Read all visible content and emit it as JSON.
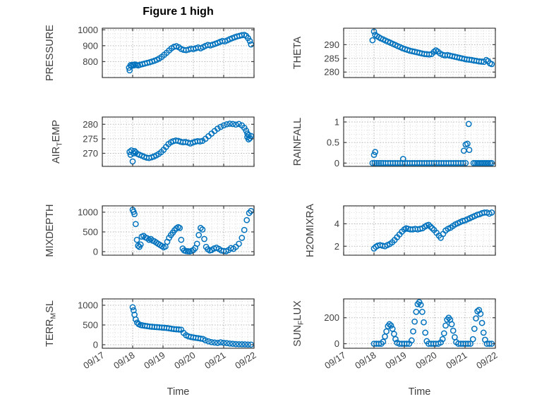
{
  "title": "Figure 1 high",
  "xlabel": "Time",
  "colors": {
    "marker": "#0072BD",
    "axis": "#3b3b3b",
    "tick_label": "#3f3f3f",
    "grid_major": "#b5b5b5",
    "grid_minor": "#d9d9d9",
    "background": "#ffffff"
  },
  "x_axis": {
    "lim": [
      17,
      22
    ],
    "ticks": [
      17,
      18,
      19,
      20,
      21,
      22
    ],
    "tick_labels": [
      "09/17",
      "09/18",
      "09/19",
      "09/20",
      "09/21",
      "09/22"
    ],
    "minor_step": 0.2
  },
  "chart_data": [
    {
      "name": "pressure",
      "type": "scatter",
      "col": 0,
      "row": 0,
      "ylabel": "PRESSURE",
      "ylabel_segments": [
        {
          "t": "PRESSURE",
          "sub": false
        }
      ],
      "ylim": [
        700,
        1010
      ],
      "yticks": [
        800,
        900,
        1000
      ],
      "ytick_labels": [
        "800",
        "900",
        "1000"
      ],
      "y_minor_step": 25,
      "show_x_tick_labels": false,
      "x": [
        17.88,
        17.9,
        17.93,
        17.96,
        18.0,
        18.04,
        18.08,
        18.13,
        18.18,
        18.24,
        18.32,
        18.4,
        18.48,
        18.56,
        18.64,
        18.72,
        18.8,
        18.88,
        18.96,
        19.04,
        19.12,
        19.2,
        19.28,
        19.36,
        19.44,
        19.52,
        19.6,
        19.68,
        19.76,
        19.84,
        19.92,
        20.0,
        20.08,
        20.16,
        20.24,
        20.32,
        20.4,
        20.48,
        20.56,
        20.64,
        20.72,
        20.8,
        20.88,
        20.96,
        21.04,
        21.12,
        21.2,
        21.28,
        21.36,
        21.44,
        21.52,
        21.6,
        21.68,
        21.74,
        21.8,
        21.86,
        21.9
      ],
      "y": [
        762,
        745,
        778,
        772,
        780,
        776,
        782,
        779,
        776,
        780,
        784,
        788,
        792,
        796,
        801,
        806,
        812,
        820,
        830,
        843,
        856,
        870,
        884,
        893,
        897,
        890,
        880,
        874,
        872,
        876,
        881,
        879,
        884,
        889,
        884,
        891,
        899,
        905,
        902,
        907,
        912,
        918,
        924,
        930,
        927,
        934,
        941,
        947,
        953,
        958,
        962,
        966,
        968,
        962,
        948,
        930,
        908
      ]
    },
    {
      "name": "airtemp",
      "type": "scatter",
      "col": 0,
      "row": 1,
      "ylabel": "AIR_TEMP",
      "ylabel_segments": [
        {
          "t": "AIR",
          "sub": false
        },
        {
          "t": "T",
          "sub": true
        },
        {
          "t": "EMP",
          "sub": false
        }
      ],
      "ylim": [
        265.5,
        282.5
      ],
      "yticks": [
        270,
        275,
        280
      ],
      "ytick_labels": [
        "270",
        "275",
        "280"
      ],
      "y_minor_step": 1,
      "show_x_tick_labels": false,
      "x": [
        17.9,
        17.93,
        17.96,
        18.0,
        18.03,
        18.06,
        18.1,
        18.16,
        18.22,
        18.3,
        18.38,
        18.46,
        18.54,
        18.62,
        18.7,
        18.78,
        18.86,
        18.94,
        19.02,
        19.1,
        19.18,
        19.26,
        19.34,
        19.42,
        19.5,
        19.58,
        19.66,
        19.74,
        19.82,
        19.9,
        19.98,
        20.06,
        20.14,
        20.22,
        20.3,
        20.4,
        20.5,
        20.6,
        20.7,
        20.8,
        20.9,
        21.0,
        21.1,
        21.2,
        21.3,
        21.4,
        21.5,
        21.6,
        21.68,
        21.74,
        21.78,
        21.78,
        21.82,
        21.82,
        21.86,
        21.9
      ],
      "y": [
        270.5,
        269.5,
        271.0,
        267.2,
        270.0,
        270.8,
        270.3,
        269.8,
        269.5,
        269.2,
        268.8,
        268.5,
        268.4,
        268.6,
        268.9,
        269.3,
        269.8,
        270.4,
        271.2,
        272.2,
        273.2,
        273.8,
        274.2,
        274.4,
        274.3,
        274.0,
        273.8,
        273.9,
        273.7,
        273.4,
        273.7,
        274.0,
        274.2,
        274.1,
        274.3,
        275.0,
        275.9,
        276.8,
        277.7,
        278.5,
        279.1,
        279.6,
        280.0,
        280.2,
        280.1,
        279.9,
        280.1,
        279.6,
        278.8,
        277.8,
        276.8,
        275.6,
        274.8,
        276.2,
        275.2,
        276.0
      ]
    },
    {
      "name": "mixdepth",
      "type": "scatter",
      "col": 0,
      "row": 2,
      "ylabel": "MIXDEPTH",
      "ylabel_segments": [
        {
          "t": "MIXDEPTH",
          "sub": false
        }
      ],
      "ylim": [
        -90,
        1160
      ],
      "yticks": [
        0,
        500,
        1000
      ],
      "ytick_labels": [
        "0",
        "500",
        "1000"
      ],
      "y_minor_step": 100,
      "show_x_tick_labels": false,
      "x": [
        18.0,
        18.03,
        18.06,
        18.1,
        18.14,
        18.18,
        18.22,
        18.26,
        18.3,
        18.36,
        18.42,
        18.48,
        18.54,
        18.6,
        18.66,
        18.72,
        18.78,
        18.84,
        18.9,
        18.96,
        19.02,
        19.08,
        19.14,
        19.2,
        19.26,
        19.32,
        19.38,
        19.44,
        19.5,
        19.55,
        19.6,
        19.65,
        19.7,
        19.76,
        19.82,
        19.88,
        19.94,
        20.0,
        20.06,
        20.12,
        20.18,
        20.24,
        20.3,
        20.36,
        20.42,
        20.48,
        20.54,
        20.6,
        20.68,
        20.76,
        20.84,
        20.92,
        21.0,
        21.08,
        21.16,
        21.24,
        21.32,
        21.4,
        21.5,
        21.6,
        21.68,
        21.76,
        21.84,
        21.9
      ],
      "y": [
        1060,
        1010,
        950,
        700,
        300,
        150,
        120,
        180,
        380,
        400,
        360,
        340,
        300,
        320,
        280,
        260,
        230,
        200,
        170,
        140,
        110,
        130,
        250,
        350,
        420,
        480,
        540,
        590,
        620,
        600,
        300,
        80,
        30,
        15,
        10,
        5,
        20,
        40,
        90,
        200,
        420,
        600,
        560,
        320,
        120,
        60,
        30,
        40,
        80,
        100,
        70,
        30,
        15,
        10,
        40,
        90,
        70,
        120,
        200,
        350,
        550,
        800,
        980,
        1030
      ]
    },
    {
      "name": "terr_msl",
      "type": "scatter",
      "col": 0,
      "row": 3,
      "ylabel": "TERR_MSL",
      "ylabel_segments": [
        {
          "t": "TERR",
          "sub": false
        },
        {
          "t": "M",
          "sub": true
        },
        {
          "t": "SL",
          "sub": false
        }
      ],
      "ylim": [
        -90,
        1160
      ],
      "yticks": [
        0,
        500,
        1000
      ],
      "ytick_labels": [
        "0",
        "500",
        "1000"
      ],
      "y_minor_step": 100,
      "show_x_tick_labels": true,
      "x": [
        18.0,
        18.03,
        18.06,
        18.1,
        18.15,
        18.2,
        18.26,
        18.32,
        18.4,
        18.48,
        18.56,
        18.64,
        18.72,
        18.8,
        18.88,
        18.96,
        19.04,
        19.12,
        19.2,
        19.28,
        19.36,
        19.44,
        19.52,
        19.6,
        19.68,
        19.76,
        19.84,
        19.92,
        20.0,
        20.08,
        20.16,
        20.24,
        20.32,
        20.4,
        20.5,
        20.6,
        20.7,
        20.8,
        20.9,
        21.0,
        21.1,
        21.2,
        21.3,
        21.4,
        21.5,
        21.6,
        21.7,
        21.8,
        21.9
      ],
      "y": [
        950,
        870,
        760,
        640,
        560,
        520,
        500,
        490,
        480,
        470,
        460,
        455,
        450,
        445,
        440,
        435,
        430,
        425,
        415,
        405,
        395,
        390,
        385,
        380,
        300,
        240,
        210,
        195,
        185,
        175,
        165,
        155,
        145,
        110,
        85,
        65,
        55,
        45,
        60,
        50,
        40,
        30,
        22,
        15,
        12,
        10,
        8,
        5,
        3
      ]
    },
    {
      "name": "theta",
      "type": "scatter",
      "col": 1,
      "row": 0,
      "ylabel": "THETA",
      "ylabel_segments": [
        {
          "t": "THETA",
          "sub": false
        }
      ],
      "ylim": [
        278,
        296
      ],
      "yticks": [
        280,
        285,
        290
      ],
      "ytick_labels": [
        "280",
        "285",
        "290"
      ],
      "y_minor_step": 1,
      "show_x_tick_labels": false,
      "x": [
        17.95,
        18.0,
        18.04,
        18.1,
        18.16,
        18.22,
        18.3,
        18.38,
        18.46,
        18.54,
        18.62,
        18.7,
        18.78,
        18.86,
        18.94,
        19.02,
        19.1,
        19.18,
        19.26,
        19.34,
        19.42,
        19.5,
        19.58,
        19.66,
        19.74,
        19.82,
        19.9,
        19.98,
        20.04,
        20.1,
        20.18,
        20.26,
        20.34,
        20.42,
        20.5,
        20.58,
        20.66,
        20.74,
        20.82,
        20.9,
        20.98,
        21.06,
        21.14,
        21.22,
        21.3,
        21.38,
        21.46,
        21.54,
        21.62,
        21.7,
        21.76,
        21.82,
        21.88
      ],
      "y": [
        291.6,
        294.8,
        293.6,
        293.1,
        292.7,
        292.3,
        291.9,
        291.5,
        291.1,
        290.7,
        290.3,
        289.9,
        289.5,
        289.1,
        288.7,
        288.4,
        288.1,
        287.8,
        287.6,
        287.4,
        287.2,
        287.0,
        286.8,
        286.6,
        286.5,
        286.4,
        286.6,
        287.4,
        287.9,
        287.5,
        286.8,
        286.3,
        286.1,
        286.2,
        286.0,
        285.8,
        285.6,
        285.4,
        285.2,
        285.0,
        284.8,
        284.6,
        284.5,
        284.4,
        284.2,
        284.1,
        283.9,
        283.8,
        283.7,
        284.4,
        284.0,
        283.2,
        282.9
      ]
    },
    {
      "name": "rainfall",
      "type": "scatter",
      "col": 1,
      "row": 1,
      "ylabel": "RAINFALL",
      "ylabel_segments": [
        {
          "t": "RAINFALL",
          "sub": false
        }
      ],
      "ylim": [
        -0.08,
        1.12
      ],
      "yticks": [
        0,
        0.5,
        1
      ],
      "ytick_labels": [
        "0",
        "0.5",
        "1"
      ],
      "y_minor_step": 0.1,
      "show_x_tick_labels": false,
      "x": [
        17.95,
        18.02,
        18.09,
        18.16,
        18.23,
        18.3,
        18.38,
        18.46,
        18.54,
        18.62,
        18.7,
        18.78,
        18.86,
        18.94,
        19.02,
        19.1,
        19.18,
        19.26,
        19.34,
        19.42,
        19.5,
        19.58,
        19.66,
        19.74,
        19.82,
        19.9,
        19.98,
        20.06,
        20.14,
        20.22,
        20.3,
        20.38,
        20.46,
        20.54,
        20.62,
        20.7,
        20.78,
        20.86,
        20.94,
        21.02,
        21.28,
        21.34,
        21.4,
        21.46,
        21.52,
        21.58,
        21.64,
        21.7,
        21.76,
        21.82,
        21.88,
        18.0,
        18.04,
        18.96,
        20.96,
        21.02,
        21.08,
        21.12,
        21.14
      ],
      "y": [
        0,
        0,
        0,
        0,
        0,
        0,
        0,
        0,
        0,
        0,
        0,
        0,
        0,
        0,
        0,
        0,
        0,
        0,
        0,
        0,
        0,
        0,
        0,
        0,
        0,
        0,
        0,
        0,
        0,
        0,
        0,
        0,
        0,
        0,
        0,
        0,
        0,
        0,
        0,
        0,
        0,
        0,
        0,
        0,
        0,
        0,
        0,
        0,
        0,
        0,
        0,
        0.2,
        0.27,
        0.1,
        0.3,
        0.45,
        0.47,
        0.95,
        0.32
      ]
    },
    {
      "name": "h2omixra",
      "type": "scatter",
      "col": 1,
      "row": 2,
      "ylabel": "H2OMIXRA",
      "ylabel_segments": [
        {
          "t": "H2OMIXRA",
          "sub": false
        }
      ],
      "ylim": [
        1.2,
        5.6
      ],
      "yticks": [
        2,
        4
      ],
      "ytick_labels": [
        "2",
        "4"
      ],
      "y_minor_step": 0.5,
      "show_x_tick_labels": false,
      "x": [
        18.0,
        18.06,
        18.12,
        18.2,
        18.28,
        18.36,
        18.44,
        18.52,
        18.6,
        18.68,
        18.76,
        18.84,
        18.92,
        19.0,
        19.06,
        19.12,
        19.2,
        19.28,
        19.36,
        19.44,
        19.52,
        19.6,
        19.68,
        19.74,
        19.8,
        19.86,
        19.92,
        19.98,
        20.06,
        20.14,
        20.2,
        20.28,
        20.36,
        20.44,
        20.52,
        20.6,
        20.68,
        20.76,
        20.84,
        20.92,
        21.0,
        21.08,
        21.16,
        21.24,
        21.32,
        21.4,
        21.48,
        21.56,
        21.64,
        21.72,
        21.8,
        21.88
      ],
      "y": [
        1.8,
        1.95,
        2.05,
        2.1,
        2.05,
        2.0,
        2.1,
        2.2,
        2.35,
        2.55,
        2.8,
        3.05,
        3.3,
        3.5,
        3.6,
        3.55,
        3.5,
        3.5,
        3.55,
        3.5,
        3.55,
        3.6,
        3.75,
        3.85,
        3.9,
        3.75,
        3.6,
        3.45,
        3.2,
        2.95,
        2.75,
        3.1,
        3.4,
        3.55,
        3.65,
        3.8,
        3.95,
        4.05,
        4.15,
        4.25,
        4.3,
        4.4,
        4.5,
        4.6,
        4.7,
        4.8,
        4.85,
        4.95,
        5.0,
        5.0,
        4.9,
        5.0
      ]
    },
    {
      "name": "sun_flux",
      "type": "scatter",
      "col": 1,
      "row": 3,
      "ylabel": "SUN_FLUX",
      "ylabel_segments": [
        {
          "t": "SUN",
          "sub": false
        },
        {
          "t": "F",
          "sub": true
        },
        {
          "t": "LUX",
          "sub": false
        }
      ],
      "ylim": [
        -35,
        345
      ],
      "yticks": [
        0,
        200
      ],
      "ytick_labels": [
        "0",
        "200"
      ],
      "y_minor_step": 40,
      "show_x_tick_labels": true,
      "x": [
        18.0,
        18.08,
        18.16,
        18.24,
        18.3,
        18.36,
        18.41,
        18.46,
        18.51,
        18.56,
        18.61,
        18.66,
        18.71,
        18.76,
        18.84,
        18.92,
        19.0,
        19.08,
        19.16,
        19.24,
        19.29,
        19.34,
        19.39,
        19.44,
        19.49,
        19.54,
        19.59,
        19.64,
        19.69,
        19.74,
        19.8,
        19.88,
        19.96,
        20.04,
        20.12,
        20.2,
        20.26,
        20.31,
        20.36,
        20.41,
        20.46,
        20.51,
        20.56,
        20.61,
        20.66,
        20.71,
        20.78,
        20.86,
        20.94,
        21.02,
        21.1,
        21.18,
        21.26,
        21.31,
        21.36,
        21.41,
        21.46,
        21.51,
        21.56,
        21.61,
        21.66,
        21.72,
        21.8,
        21.88
      ],
      "y": [
        0,
        0,
        0,
        0,
        15,
        55,
        95,
        135,
        150,
        140,
        115,
        75,
        35,
        8,
        0,
        0,
        0,
        0,
        0,
        25,
        95,
        170,
        245,
        305,
        320,
        300,
        245,
        165,
        85,
        20,
        0,
        0,
        0,
        0,
        0,
        10,
        35,
        80,
        140,
        185,
        200,
        185,
        150,
        100,
        50,
        12,
        0,
        0,
        0,
        0,
        0,
        0,
        35,
        115,
        195,
        250,
        260,
        230,
        160,
        85,
        30,
        0,
        0,
        0
      ]
    }
  ]
}
